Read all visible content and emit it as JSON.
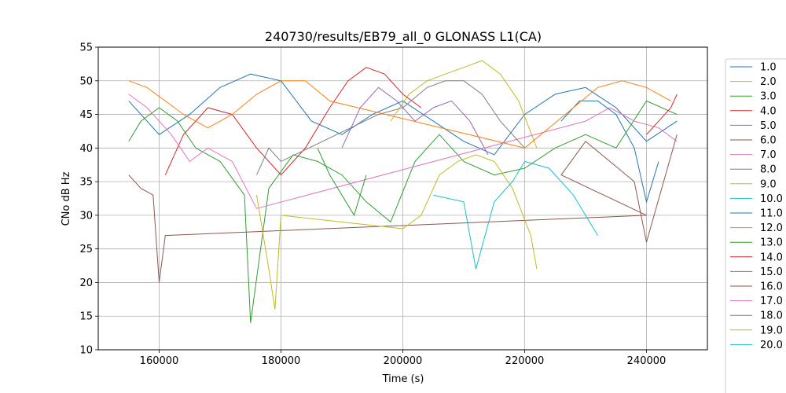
{
  "chart_data": {
    "type": "line",
    "title": "240730/results/EB79_all_0 GLONASS L1(CA)",
    "xlabel": "Time (s)",
    "ylabel": "CNo dB Hz",
    "xlim": [
      150000,
      250000
    ],
    "ylim": [
      10,
      55
    ],
    "x_ticks": [
      160000,
      180000,
      200000,
      220000,
      240000
    ],
    "x_tick_labels": [
      "160000",
      "180000",
      "200000",
      "220000",
      "240000"
    ],
    "y_ticks": [
      10,
      15,
      20,
      25,
      30,
      35,
      40,
      45,
      50,
      55
    ],
    "y_tick_labels": [
      "10",
      "15",
      "20",
      "25",
      "30",
      "35",
      "40",
      "45",
      "50",
      "55"
    ],
    "grid": true,
    "legend_position": "right, outside plot (clipped at bottom)",
    "series": [
      {
        "name": "1.0",
        "color": "#1f77b4",
        "x": [
          155000,
          160000,
          165000,
          170000,
          175000,
          180000,
          185000,
          190000,
          195000,
          200000,
          205000,
          210000,
          215000,
          220000,
          225000,
          230000,
          235000,
          240000,
          245000
        ],
        "y": [
          47,
          42,
          45,
          49,
          51,
          50,
          44,
          42,
          45,
          47,
          44,
          41,
          39,
          45,
          48,
          49,
          46,
          41,
          44
        ]
      },
      {
        "name": "2.0",
        "color": "#bcbd22",
        "x": [
          198000,
          201000,
          204000,
          207000,
          210000,
          213000,
          216000,
          219000,
          222000
        ],
        "y": [
          44,
          48,
          50,
          51,
          52,
          53,
          51,
          47,
          40
        ]
      },
      {
        "name": "3.0",
        "color": "#2ca02c",
        "x": [
          155000,
          157000,
          160000,
          163000,
          166000,
          170000,
          174000,
          175000,
          178000,
          182000,
          186000,
          190000,
          194000,
          198000,
          202000,
          206000,
          210000,
          215000,
          220000,
          225000,
          230000,
          235000,
          240000,
          245000
        ],
        "y": [
          41,
          44,
          46,
          44,
          40,
          38,
          33,
          14,
          34,
          39,
          38,
          36,
          32,
          29,
          38,
          42,
          38,
          36,
          37,
          40,
          42,
          40,
          47,
          45
        ]
      },
      {
        "name": "4.0",
        "color": "#d62728",
        "x": [
          161000,
          164000,
          168000,
          172000,
          176000,
          180000,
          184000,
          188000,
          191000,
          194000,
          197000,
          200000,
          203000
        ],
        "y": [
          36,
          42,
          46,
          45,
          40,
          36,
          40,
          46,
          50,
          52,
          51,
          48,
          46
        ]
      },
      {
        "name": "5.0",
        "color": "#9467bd",
        "x": [
          190000,
          193000,
          196000,
          199000,
          202000,
          205000,
          208000,
          211000,
          214000
        ],
        "y": [
          40,
          46,
          49,
          47,
          44,
          46,
          47,
          44,
          39
        ]
      },
      {
        "name": "6.0",
        "color": "#8c564b",
        "x": [
          155000,
          157000,
          159000,
          160000,
          161000,
          240000,
          226000,
          230000,
          234000,
          238000,
          240000,
          245000
        ],
        "y": [
          36,
          34,
          33,
          20,
          27,
          30,
          36,
          41,
          38,
          35,
          26,
          42
        ]
      },
      {
        "name": "7.0",
        "color": "#e377c2",
        "x": [
          155000,
          158000,
          162000,
          165000,
          168000,
          172000,
          176000,
          230000,
          234000,
          238000,
          242000,
          245000
        ],
        "y": [
          48,
          46,
          42,
          38,
          40,
          38,
          31,
          44,
          46,
          44,
          43,
          41
        ]
      },
      {
        "name": "8.0",
        "color": "#7f7f7f",
        "x": [
          176000,
          178000,
          180000,
          196000,
          200000,
          204000,
          207000,
          210000,
          213000,
          216000,
          220000
        ],
        "y": [
          36,
          40,
          38,
          45,
          46,
          49,
          50,
          50,
          48,
          44,
          40
        ]
      },
      {
        "name": "9.0",
        "color": "#bcbd22",
        "x": [
          176000,
          178000,
          179000,
          180000,
          200000,
          203000,
          206000,
          209000,
          212000,
          215000,
          218000,
          221000,
          222000
        ],
        "y": [
          33,
          22,
          16,
          30,
          28,
          30,
          36,
          38,
          39,
          38,
          34,
          27,
          22
        ]
      },
      {
        "name": "10.0",
        "color": "#17becf",
        "x": [
          205000,
          210000,
          212000,
          215000,
          218000,
          220000,
          224000,
          228000,
          232000
        ],
        "y": [
          33,
          32,
          22,
          32,
          35,
          38,
          37,
          33,
          27
        ]
      },
      {
        "name": "11.0",
        "color": "#1f77b4",
        "x": [
          226000,
          229000,
          232000,
          235000,
          238000,
          240000,
          242000
        ],
        "y": [
          44,
          47,
          47,
          45,
          40,
          32,
          38
        ]
      },
      {
        "name": "12.0",
        "color": "#ff7f0e",
        "x": [
          155000,
          158000,
          161000,
          164000,
          168000,
          172000,
          176000,
          180000,
          184000,
          188000,
          220000,
          224000,
          228000,
          232000,
          236000,
          240000,
          244000
        ],
        "y": [
          50,
          49,
          47,
          45,
          43,
          45,
          48,
          50,
          50,
          47,
          40,
          43,
          46,
          49,
          50,
          49,
          47
        ]
      },
      {
        "name": "13.0",
        "color": "#2ca02c",
        "x": [
          186000,
          188000,
          190000,
          192000,
          194000
        ],
        "y": [
          40,
          36,
          33,
          30,
          36
        ]
      },
      {
        "name": "14.0",
        "color": "#d62728",
        "x": [
          240000,
          242000,
          244000,
          245000
        ],
        "y": [
          42,
          44,
          46,
          48
        ]
      },
      {
        "name": "15.0",
        "color": "#9467bd",
        "x": [],
        "y": []
      },
      {
        "name": "16.0",
        "color": "#8c564b",
        "x": [],
        "y": []
      },
      {
        "name": "17.0",
        "color": "#e377c2",
        "x": [],
        "y": []
      },
      {
        "name": "18.0",
        "color": "#7f7f7f",
        "x": [],
        "y": []
      },
      {
        "name": "19.0",
        "color": "#bcbd22",
        "x": [],
        "y": []
      },
      {
        "name": "20.0",
        "color": "#17becf",
        "x": [],
        "y": []
      }
    ]
  }
}
